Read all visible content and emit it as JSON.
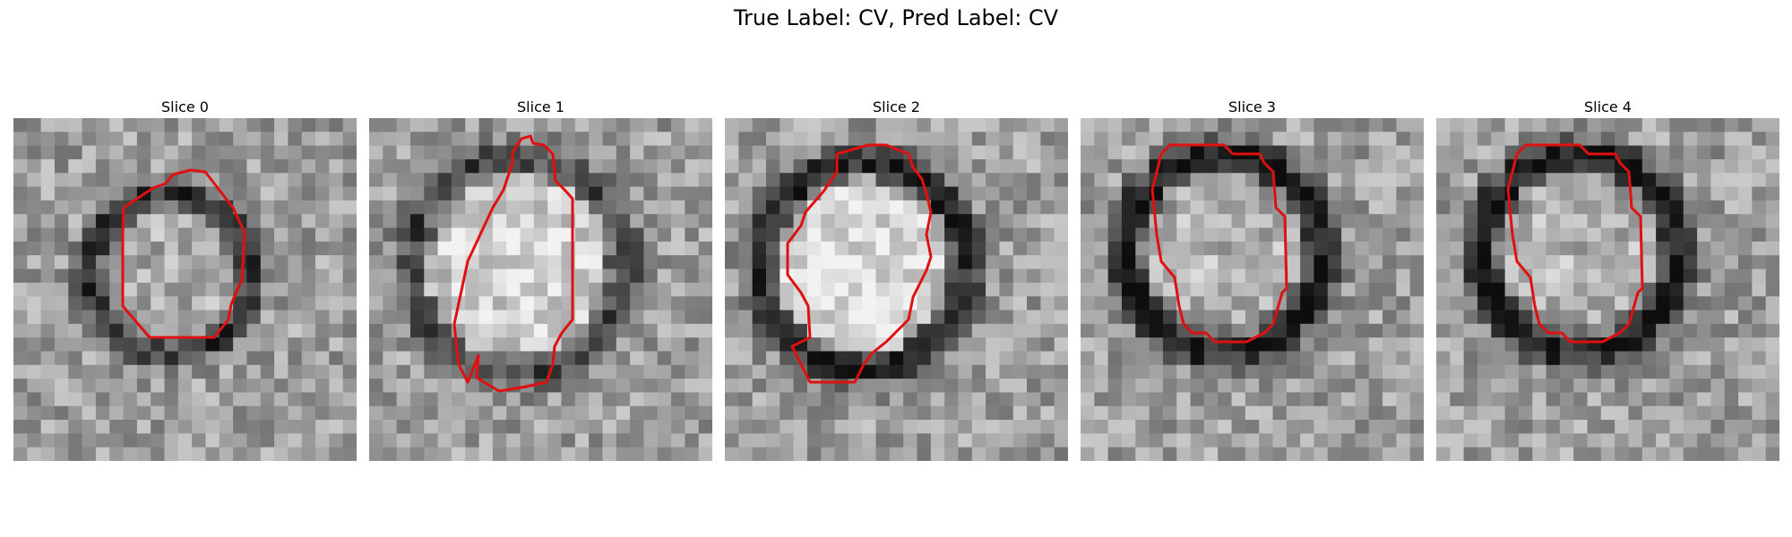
{
  "figure": {
    "title": "True Label: CV, Pred Label: CV"
  },
  "slices": [
    {
      "title": "Slice 0"
    },
    {
      "title": "Slice 1"
    },
    {
      "title": "Slice 2"
    },
    {
      "title": "Slice 3"
    },
    {
      "title": "Slice 4"
    }
  ],
  "colors": {
    "contour": "#e01010",
    "background": "#ffffff"
  }
}
